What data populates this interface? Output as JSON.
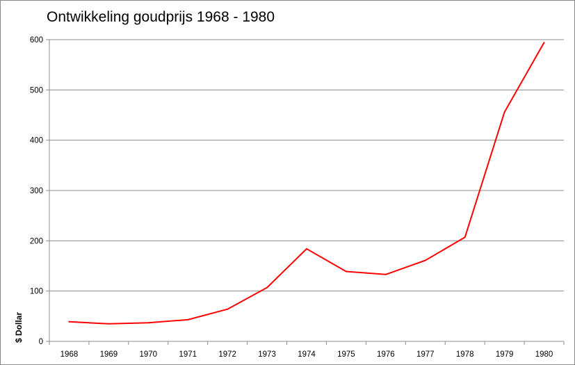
{
  "chart_data": {
    "type": "line",
    "title": "Ontwikkeling goudprijs 1968 - 1980",
    "xlabel": "",
    "ylabel": "$ Dollar",
    "ylim": [
      0,
      600
    ],
    "yticks": [
      0,
      100,
      200,
      300,
      400,
      500,
      600
    ],
    "grid": true,
    "legend": "none",
    "categories": [
      "1968",
      "1969",
      "1970",
      "1971",
      "1972",
      "1973",
      "1974",
      "1975",
      "1976",
      "1977",
      "1978",
      "1979",
      "1980"
    ],
    "series": [
      {
        "name": "",
        "color": "#ff0000",
        "values": [
          39,
          35,
          37,
          43,
          64,
          107,
          184,
          139,
          133,
          161,
          207,
          456,
          594
        ]
      }
    ]
  }
}
